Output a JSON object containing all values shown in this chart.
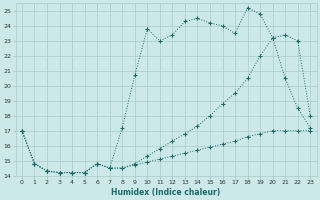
{
  "xlabel": "Humidex (Indice chaleur)",
  "bg_color": "#cce8e8",
  "grid_color": "#aacccc",
  "line_color": "#1a6b6b",
  "xlim": [
    -0.5,
    23.5
  ],
  "ylim": [
    14,
    25.5
  ],
  "xticks": [
    0,
    1,
    2,
    3,
    4,
    5,
    6,
    7,
    8,
    9,
    10,
    11,
    12,
    13,
    14,
    15,
    16,
    17,
    18,
    19,
    20,
    21,
    22,
    23
  ],
  "yticks": [
    14,
    15,
    16,
    17,
    18,
    19,
    20,
    21,
    22,
    23,
    24,
    25
  ],
  "series1_x": [
    0,
    1,
    2,
    3,
    4,
    5,
    6,
    7,
    8,
    9,
    10,
    11,
    12,
    13,
    14,
    15,
    16,
    17,
    18,
    19,
    20,
    21,
    22,
    23
  ],
  "series1_y": [
    17,
    14.8,
    14.3,
    14.2,
    14.2,
    14.2,
    14.8,
    14.5,
    17.2,
    20.7,
    23.8,
    23.0,
    23.4,
    24.3,
    24.5,
    24.2,
    24.0,
    23.5,
    25.2,
    24.8,
    23.2,
    20.5,
    18.5,
    17.2
  ],
  "series2_x": [
    0,
    1,
    2,
    3,
    4,
    5,
    6,
    7,
    8,
    9,
    10,
    11,
    12,
    13,
    14,
    15,
    16,
    17,
    18,
    19,
    20,
    21,
    22,
    23
  ],
  "series2_y": [
    17,
    14.8,
    14.3,
    14.2,
    14.2,
    14.2,
    14.8,
    14.5,
    14.5,
    14.7,
    14.9,
    15.1,
    15.3,
    15.5,
    15.7,
    15.9,
    16.1,
    16.3,
    16.6,
    16.8,
    17.0,
    17.0,
    17.0,
    17.0
  ],
  "series3_x": [
    0,
    1,
    2,
    3,
    4,
    5,
    6,
    7,
    8,
    9,
    10,
    11,
    12,
    13,
    14,
    15,
    16,
    17,
    18,
    19,
    20,
    21,
    22,
    23
  ],
  "series3_y": [
    17,
    14.8,
    14.3,
    14.2,
    14.2,
    14.2,
    14.8,
    14.5,
    14.5,
    14.8,
    15.3,
    15.8,
    16.3,
    16.8,
    17.3,
    18.0,
    18.8,
    19.5,
    20.5,
    22.0,
    23.2,
    23.4,
    23.0,
    18.0
  ]
}
